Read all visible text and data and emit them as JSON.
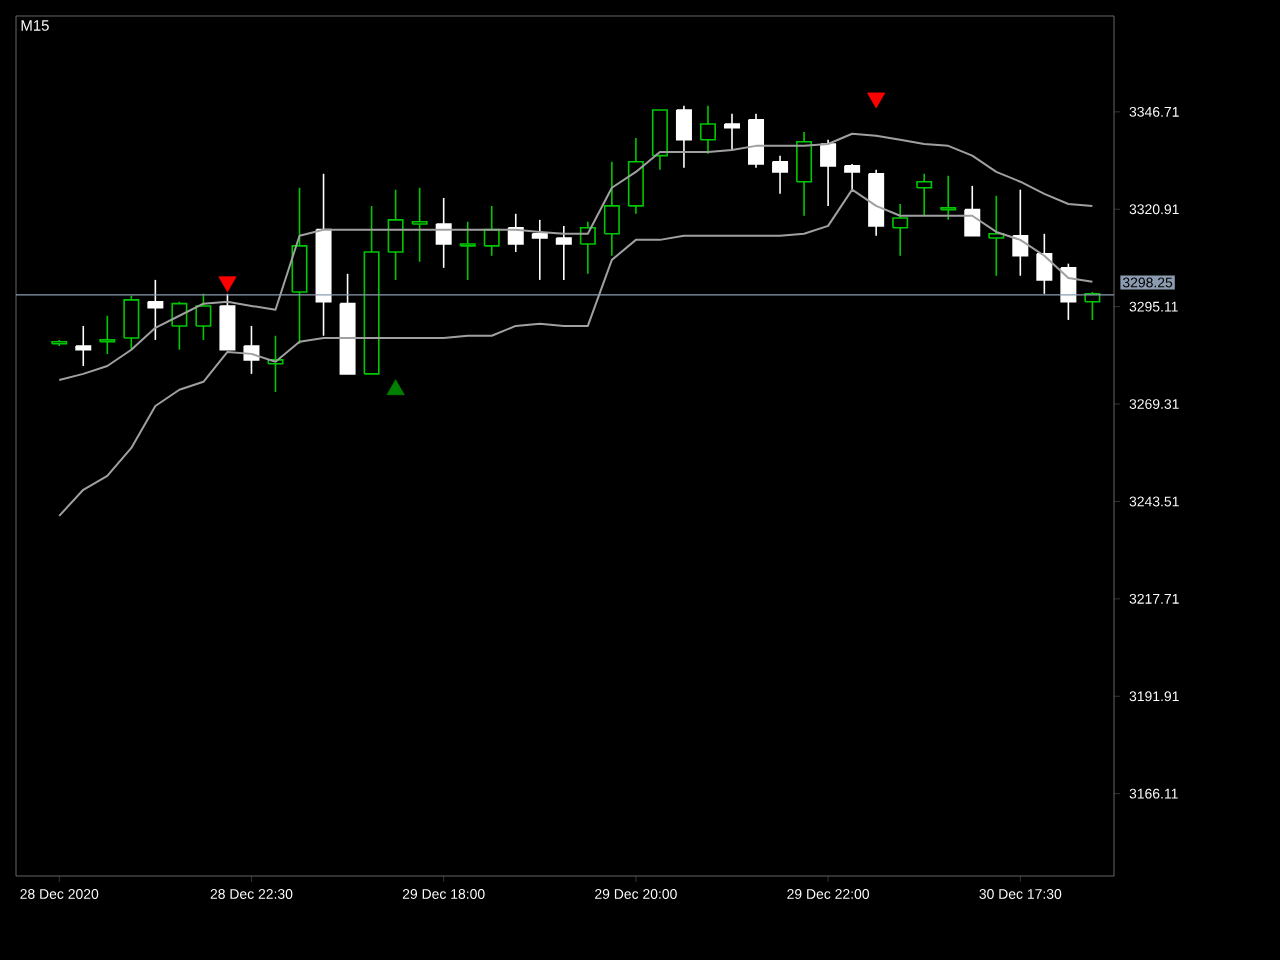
{
  "chart_data": {
    "type": "candlestick",
    "title": "M15",
    "categories": [
      "28 Dec 2020",
      null,
      null,
      null,
      null,
      null,
      null,
      null,
      "28 Dec 22:30",
      null,
      null,
      null,
      null,
      null,
      null,
      null,
      "29 Dec 18:00",
      null,
      null,
      null,
      null,
      null,
      null,
      null,
      "29 Dec 20:00",
      null,
      null,
      null,
      null,
      null,
      null,
      null,
      "29 Dec 22:00",
      null,
      null,
      null,
      null,
      null,
      null,
      null,
      "30 Dec 17:30",
      null,
      null,
      null
    ],
    "series": [
      {
        "type": "line",
        "color": "#a0a0a0",
        "values": [
          3275.7,
          3277.3,
          3279.4,
          3283.7,
          3289.5,
          3292.7,
          3295.9,
          3296.4,
          3295.3,
          3294.3,
          3313.9,
          3315.5,
          3315.5,
          3315.5,
          3315.5,
          3315.5,
          3315.5,
          3315.5,
          3315.5,
          3315.5,
          3314.9,
          3314.4,
          3314.4,
          3326.6,
          3330.8,
          3336.1,
          3336.1,
          3336.1,
          3336.6,
          3337.7,
          3337.7,
          3337.7,
          3338.2,
          3340.9,
          3340.4,
          3339.3,
          3338.2,
          3337.7,
          3335.1,
          3330.8,
          3328.2,
          3325.0,
          3322.3,
          3321.8
        ]
      },
      {
        "type": "line",
        "color": "#a0a0a0",
        "values": [
          3239.7,
          3246.6,
          3250.3,
          3257.7,
          3268.8,
          3273.1,
          3275.2,
          3283.1,
          3282.6,
          3280.5,
          3285.8,
          3286.8,
          3286.8,
          3286.8,
          3286.8,
          3286.8,
          3286.8,
          3287.4,
          3287.4,
          3290.0,
          3290.6,
          3290.0,
          3290.0,
          3307.5,
          3312.8,
          3312.8,
          3313.9,
          3313.9,
          3313.9,
          3313.9,
          3313.9,
          3314.4,
          3316.5,
          3326.1,
          3321.8,
          3319.2,
          3319.2,
          3319.2,
          3319.2,
          3314.9,
          3312.8,
          3308.6,
          3302.7,
          3301.7
        ]
      },
      {
        "ohlc": [
          [
            3285.3,
            3286.3,
            3284.7,
            3285.8
          ],
          [
            3284.7,
            3290.0,
            3279.4,
            3283.7
          ],
          [
            3285.8,
            3292.7,
            3282.6,
            3286.3
          ],
          [
            3286.8,
            3298.0,
            3283.7,
            3296.9
          ],
          [
            3296.4,
            3302.2,
            3286.3,
            3294.8
          ],
          [
            3290.0,
            3296.4,
            3283.7,
            3295.9
          ],
          [
            3290.0,
            3298.5,
            3286.3,
            3295.3
          ],
          [
            3295.3,
            3298.5,
            3283.7,
            3283.7
          ],
          [
            3284.7,
            3290.0,
            3277.3,
            3281.0
          ],
          [
            3280.0,
            3287.4,
            3272.5,
            3281.0
          ],
          [
            3299.0,
            3326.6,
            3285.3,
            3311.2
          ],
          [
            3315.5,
            3330.3,
            3287.4,
            3296.4
          ],
          [
            3295.9,
            3303.8,
            3277.3,
            3277.3
          ],
          [
            3277.3,
            3321.8,
            3277.3,
            3309.6
          ],
          [
            3309.6,
            3326.1,
            3302.2,
            3318.1
          ],
          [
            3317.0,
            3326.6,
            3307.0,
            3317.6
          ],
          [
            3317.0,
            3323.9,
            3305.4,
            3311.7
          ],
          [
            3311.2,
            3317.6,
            3302.2,
            3311.7
          ],
          [
            3311.2,
            3321.8,
            3308.6,
            3315.5
          ],
          [
            3316.0,
            3319.7,
            3309.6,
            3311.7
          ],
          [
            3314.4,
            3318.1,
            3302.2,
            3313.3
          ],
          [
            3313.3,
            3316.5,
            3302.2,
            3311.7
          ],
          [
            3311.7,
            3317.6,
            3303.8,
            3316.0
          ],
          [
            3314.4,
            3333.5,
            3308.6,
            3321.8
          ],
          [
            3321.8,
            3339.8,
            3319.7,
            3333.5
          ],
          [
            3335.1,
            3347.2,
            3331.4,
            3347.2
          ],
          [
            3347.2,
            3348.3,
            3331.9,
            3339.3
          ],
          [
            3339.3,
            3348.3,
            3335.6,
            3343.5
          ],
          [
            3343.5,
            3346.2,
            3336.6,
            3342.5
          ],
          [
            3344.6,
            3346.2,
            3331.9,
            3332.9
          ],
          [
            3333.5,
            3335.1,
            3325.0,
            3330.8
          ],
          [
            3328.2,
            3341.4,
            3319.2,
            3338.8
          ],
          [
            3338.2,
            3339.3,
            3321.8,
            3332.4
          ],
          [
            3332.4,
            3332.9,
            3326.1,
            3330.8
          ],
          [
            3330.3,
            3331.4,
            3313.9,
            3316.5
          ],
          [
            3316.0,
            3322.3,
            3308.6,
            3318.6
          ],
          [
            3326.6,
            3330.3,
            3319.2,
            3328.2
          ],
          [
            3320.8,
            3329.8,
            3318.1,
            3321.3
          ],
          [
            3320.8,
            3327.1,
            3313.9,
            3313.9
          ],
          [
            3313.3,
            3324.5,
            3303.3,
            3314.4
          ],
          [
            3313.9,
            3326.1,
            3303.3,
            3308.6
          ],
          [
            3309.1,
            3314.4,
            3298.5,
            3302.2
          ],
          [
            3305.4,
            3306.5,
            3291.6,
            3296.4
          ],
          [
            3296.4,
            3299.0,
            3291.6,
            3298.5
          ]
        ],
        "colors": [
          "#00c800",
          "#ffffff",
          "#00c800",
          "#00c800",
          "#ffffff",
          "#00c800",
          "#00c800",
          "#ffffff",
          "#ffffff",
          "#00c800",
          "#00c800",
          "#ffffff",
          "#ffffff",
          "#00c800",
          "#00c800",
          "#00c800",
          "#ffffff",
          "#00c800",
          "#00c800",
          "#ffffff",
          "#ffffff",
          "#ffffff",
          "#00c800",
          "#00c800",
          "#00c800",
          "#00c800",
          "#ffffff",
          "#00c800",
          "#ffffff",
          "#ffffff",
          "#ffffff",
          "#00c800",
          "#ffffff",
          "#ffffff",
          "#ffffff",
          "#00c800",
          "#00c800",
          "#00c800",
          "#ffffff",
          "#00c800",
          "#ffffff",
          "#ffffff",
          "#ffffff",
          "#00c800"
        ]
      },
      {
        "type": "scatter",
        "color": "#ff0000",
        "marker": "triangle",
        "values": [
          null,
          null,
          null,
          null,
          null,
          null,
          null,
          3301.7,
          null,
          null,
          null,
          null,
          null,
          null,
          null,
          null,
          null,
          null,
          null,
          null,
          null,
          null,
          null,
          null,
          null,
          null,
          null,
          null,
          null,
          null,
          null,
          null,
          null,
          null,
          3350.4,
          null,
          null,
          null,
          null,
          null,
          null,
          null,
          null,
          null
        ]
      },
      {
        "type": "scatter",
        "color": "#008000",
        "marker": "triangle",
        "values": [
          null,
          null,
          null,
          null,
          null,
          null,
          null,
          null,
          null,
          null,
          null,
          null,
          null,
          null,
          3273.1,
          null,
          null,
          null,
          null,
          null,
          null,
          null,
          null,
          null,
          null,
          null,
          null,
          null,
          null,
          null,
          null,
          null,
          null,
          null,
          null,
          null,
          null,
          null,
          null,
          null,
          null,
          null,
          null,
          null
        ]
      }
    ],
    "ylim": [
      3144.3,
      3372.1
    ],
    "yticks": [
      3166.11,
      3191.91,
      3217.71,
      3243.51,
      3269.31,
      3295.11,
      3320.91,
      3346.71
    ],
    "ref_lines": [
      {
        "axis": "y",
        "value": 3298.25,
        "label": "3298.25",
        "color": "#8c9cb0"
      }
    ],
    "grid": false
  }
}
